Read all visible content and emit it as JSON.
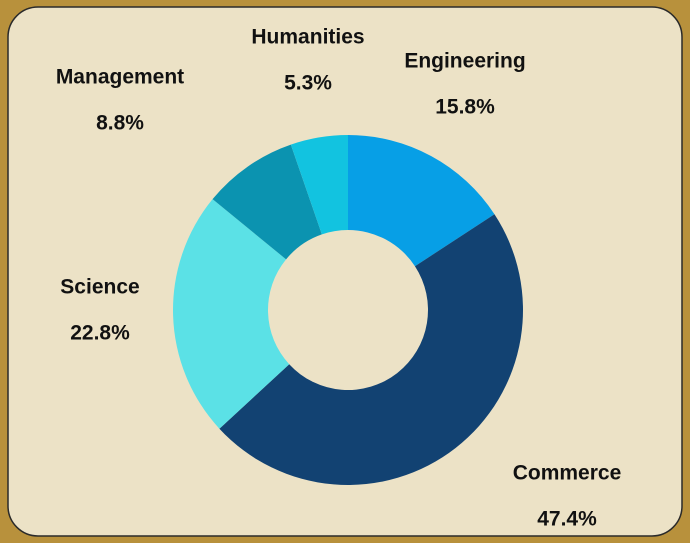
{
  "chart_data": {
    "type": "donut",
    "categories": [
      "Engineering",
      "Commerce",
      "Science",
      "Management",
      "Humanities"
    ],
    "values": [
      15.8,
      47.4,
      22.8,
      8.8,
      5.3
    ],
    "value_labels": [
      "15.8%",
      "47.4%",
      "22.8%",
      "8.8%",
      "5.3%"
    ],
    "colors": [
      "#079fe6",
      "#124272",
      "#5be1e6",
      "#0b93b0",
      "#12c3e0"
    ]
  }
}
